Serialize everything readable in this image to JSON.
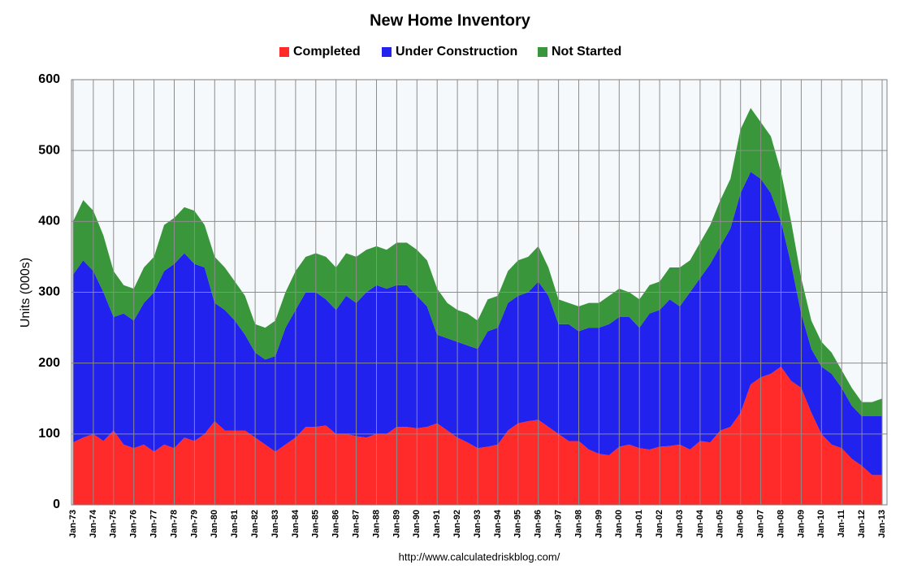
{
  "chart_data": {
    "type": "stacked_area",
    "title": "New Home Inventory",
    "y_label": "Units (000s)",
    "source": "http://www.calculatedriskblog.com/",
    "categories": [
      "Jan-73",
      null,
      "Jan-74",
      null,
      "Jan-75",
      null,
      "Jan-76",
      null,
      "Jan-77",
      null,
      "Jan-78",
      null,
      "Jan-79",
      null,
      "Jan-80",
      null,
      "Jan-81",
      null,
      "Jan-82",
      null,
      "Jan-83",
      null,
      "Jan-84",
      null,
      "Jan-85",
      null,
      "Jan-86",
      null,
      "Jan-87",
      null,
      "Jan-88",
      null,
      "Jan-89",
      null,
      "Jan-90",
      null,
      "Jan-91",
      null,
      "Jan-92",
      null,
      "Jan-93",
      null,
      "Jan-94",
      null,
      "Jan-95",
      null,
      "Jan-96",
      null,
      "Jan-97",
      null,
      "Jan-98",
      null,
      "Jan-99",
      null,
      "Jan-00",
      null,
      "Jan-01",
      null,
      "Jan-02",
      null,
      "Jan-03",
      null,
      "Jan-04",
      null,
      "Jan-05",
      null,
      "Jan-06",
      null,
      "Jan-07",
      null,
      "Jan-08",
      null,
      "Jan-09",
      null,
      "Jan-10",
      null,
      "Jan-11",
      null,
      "Jan-12",
      null,
      "Jan-13"
    ],
    "series": [
      {
        "name": "Completed",
        "color": "#ff2a2a",
        "values": [
          88,
          95,
          100,
          90,
          105,
          85,
          80,
          85,
          75,
          85,
          80,
          95,
          90,
          100,
          118,
          105,
          105,
          105,
          95,
          85,
          75,
          85,
          95,
          110,
          110,
          112,
          100,
          100,
          97,
          95,
          100,
          100,
          110,
          110,
          108,
          110,
          115,
          105,
          95,
          88,
          80,
          82,
          85,
          105,
          115,
          118,
          120,
          110,
          100,
          90,
          90,
          78,
          72,
          70,
          82,
          85,
          80,
          78,
          82,
          83,
          85,
          78,
          90,
          88,
          105,
          110,
          130,
          170,
          180,
          185,
          195,
          175,
          165,
          130,
          100,
          85,
          80,
          65,
          55,
          42,
          42
        ]
      },
      {
        "name": "Under Construction",
        "color": "#2222ee",
        "values": [
          237,
          250,
          230,
          210,
          160,
          185,
          180,
          200,
          225,
          245,
          260,
          260,
          250,
          235,
          167,
          170,
          155,
          135,
          120,
          120,
          135,
          165,
          180,
          190,
          190,
          178,
          175,
          195,
          188,
          205,
          210,
          205,
          200,
          200,
          187,
          170,
          125,
          130,
          135,
          137,
          140,
          163,
          165,
          180,
          180,
          182,
          195,
          185,
          155,
          165,
          155,
          172,
          178,
          185,
          183,
          180,
          170,
          192,
          193,
          207,
          195,
          222,
          230,
          252,
          260,
          280,
          310,
          300,
          280,
          255,
          205,
          165,
          105,
          90,
          95,
          100,
          85,
          75,
          70,
          83,
          83
        ]
      },
      {
        "name": "Not Started",
        "color": "#3a963a",
        "values": [
          75,
          85,
          85,
          80,
          65,
          40,
          45,
          50,
          50,
          65,
          65,
          65,
          75,
          60,
          65,
          60,
          55,
          55,
          40,
          45,
          50,
          50,
          55,
          50,
          55,
          60,
          60,
          60,
          65,
          60,
          55,
          55,
          60,
          60,
          65,
          65,
          65,
          50,
          45,
          45,
          40,
          45,
          45,
          45,
          50,
          50,
          50,
          40,
          35,
          30,
          35,
          35,
          35,
          40,
          40,
          35,
          40,
          40,
          40,
          45,
          55,
          45,
          50,
          55,
          65,
          70,
          90,
          90,
          80,
          80,
          70,
          60,
          50,
          40,
          35,
          30,
          25,
          25,
          20,
          20,
          25
        ]
      }
    ],
    "ylim": [
      0,
      600
    ],
    "yticks": [
      0,
      100,
      200,
      300,
      400,
      500,
      600
    ],
    "grid": true
  }
}
